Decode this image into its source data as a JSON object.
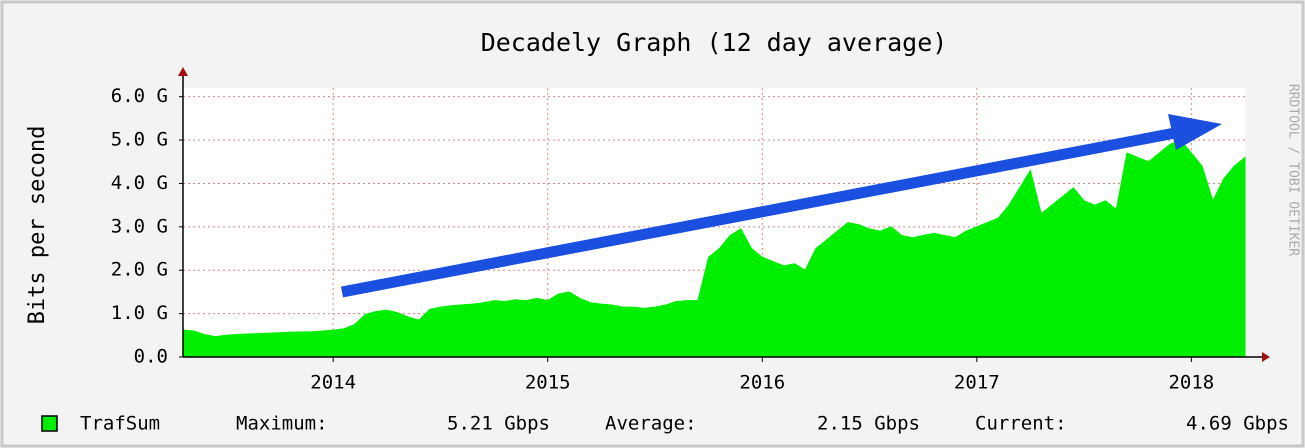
{
  "chart_data": {
    "type": "area",
    "title": "Decadely Graph (12 day average)",
    "y_label": "Bits per second",
    "watermark": "RRDTOOL / TOBI OETIKER",
    "series": [
      {
        "name": "TrafSum",
        "color": "#00ee00",
        "values": [
          0.62,
          0.6,
          0.52,
          0.47,
          0.5,
          0.52,
          0.53,
          0.54,
          0.55,
          0.56,
          0.57,
          0.58,
          0.58,
          0.6,
          0.62,
          0.65,
          0.75,
          0.98,
          1.05,
          1.08,
          1.02,
          0.92,
          0.85,
          1.1,
          1.15,
          1.18,
          1.2,
          1.22,
          1.25,
          1.3,
          1.28,
          1.32,
          1.3,
          1.35,
          1.3,
          1.45,
          1.5,
          1.35,
          1.25,
          1.22,
          1.2,
          1.15,
          1.15,
          1.12,
          1.15,
          1.2,
          1.28,
          1.3,
          1.3,
          2.3,
          2.5,
          2.8,
          2.95,
          2.5,
          2.3,
          2.2,
          2.1,
          2.15,
          2.0,
          2.5,
          2.7,
          2.9,
          3.1,
          3.05,
          2.95,
          2.9,
          3.0,
          2.8,
          2.75,
          2.8,
          2.85,
          2.8,
          2.75,
          2.9,
          3.0,
          3.1,
          3.2,
          3.5,
          3.9,
          4.3,
          3.3,
          3.5,
          3.7,
          3.9,
          3.6,
          3.5,
          3.6,
          3.4,
          4.7,
          4.6,
          4.5,
          4.7,
          4.9,
          5.0,
          4.7,
          4.4,
          3.6,
          4.1,
          4.4,
          4.6
        ]
      }
    ],
    "x": [
      2013.3,
      2013.35,
      2013.4,
      2013.45,
      2013.5,
      2013.55,
      2013.6,
      2013.65,
      2013.7,
      2013.75,
      2013.8,
      2013.85,
      2013.9,
      2013.95,
      2014.0,
      2014.05,
      2014.1,
      2014.15,
      2014.2,
      2014.25,
      2014.3,
      2014.35,
      2014.4,
      2014.45,
      2014.5,
      2014.55,
      2014.6,
      2014.65,
      2014.7,
      2014.75,
      2014.8,
      2014.85,
      2014.9,
      2014.95,
      2015.0,
      2015.05,
      2015.1,
      2015.15,
      2015.2,
      2015.25,
      2015.3,
      2015.35,
      2015.4,
      2015.45,
      2015.5,
      2015.55,
      2015.6,
      2015.65,
      2015.7,
      2015.75,
      2015.8,
      2015.85,
      2015.9,
      2015.95,
      2016.0,
      2016.05,
      2016.1,
      2016.15,
      2016.2,
      2016.25,
      2016.3,
      2016.35,
      2016.4,
      2016.45,
      2016.5,
      2016.55,
      2016.6,
      2016.65,
      2016.7,
      2016.75,
      2016.8,
      2016.85,
      2016.9,
      2016.95,
      2017.0,
      2017.05,
      2017.1,
      2017.15,
      2017.2,
      2017.25,
      2017.3,
      2017.35,
      2017.4,
      2017.45,
      2017.5,
      2017.55,
      2017.6,
      2017.65,
      2017.7,
      2017.75,
      2017.8,
      2017.85,
      2017.9,
      2017.95,
      2018.0,
      2018.05,
      2018.1,
      2018.15,
      2018.2,
      2018.25
    ],
    "xlim": [
      2013.3,
      2018.25
    ],
    "xticks": [
      2014,
      2015,
      2016,
      2017,
      2018
    ],
    "ylim": [
      0,
      6.2
    ],
    "yticks": [
      {
        "value": 0,
        "label": "0.0"
      },
      {
        "value": 1,
        "label": "1.0 G"
      },
      {
        "value": 2,
        "label": "2.0 G"
      },
      {
        "value": 3,
        "label": "3.0 G"
      },
      {
        "value": 4,
        "label": "4.0 G"
      },
      {
        "value": 5,
        "label": "5.0 G"
      },
      {
        "value": 6,
        "label": "6.0 G"
      }
    ],
    "grid": true,
    "stats": [
      {
        "label": "Maximum:",
        "value": "5.21 Gbps"
      },
      {
        "label": "Average:",
        "value": "2.15 Gbps"
      },
      {
        "label": "Current:",
        "value": "4.69 Gbps"
      }
    ]
  }
}
